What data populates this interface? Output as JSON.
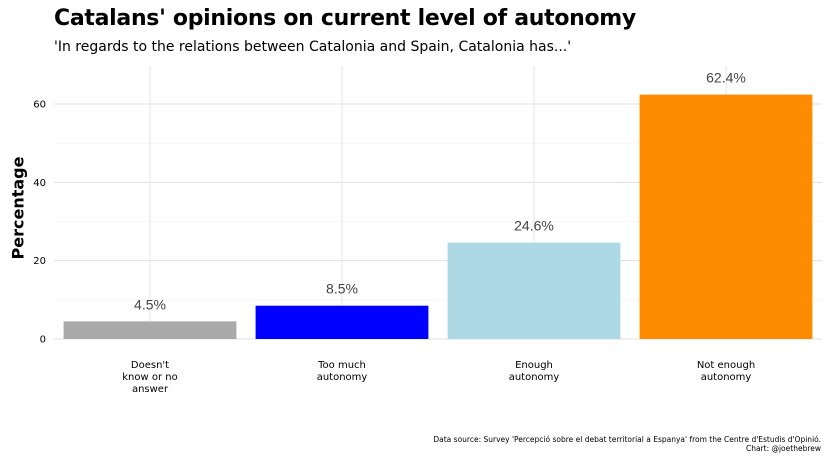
{
  "chart_data": {
    "type": "bar",
    "title": "Catalans' opinions on current level of autonomy",
    "subtitle": "'In regards to the relations between Catalonia and Spain, Catalonia has...'",
    "xlabel": "",
    "ylabel": "Percentage",
    "categories": [
      "Doesn't know or no answer",
      "Too much autonomy",
      "Enough autonomy",
      "Not enough autonomy"
    ],
    "category_lines": [
      [
        "Doesn't",
        "know or no",
        "answer"
      ],
      [
        "Too much",
        "autonomy"
      ],
      [
        "Enough",
        "autonomy"
      ],
      [
        "Not enough",
        "autonomy"
      ]
    ],
    "values": [
      4.5,
      8.5,
      24.6,
      62.4
    ],
    "data_labels": [
      "4.5%",
      "8.5%",
      "24.6%",
      "62.4%"
    ],
    "colors": [
      "#a9a9a9",
      "#0000ff",
      "#add8e6",
      "#ff8c00"
    ],
    "y_ticks": [
      0,
      20,
      40,
      60
    ],
    "ylim": [
      0,
      69
    ],
    "grid": true,
    "legend": "none",
    "caption_lines": [
      "Data source: Survey 'Percepció sobre el debat territorial a Espanya' from the Centre d'Estudis d'Opinió.",
      "Chart: @joethebrew"
    ]
  }
}
